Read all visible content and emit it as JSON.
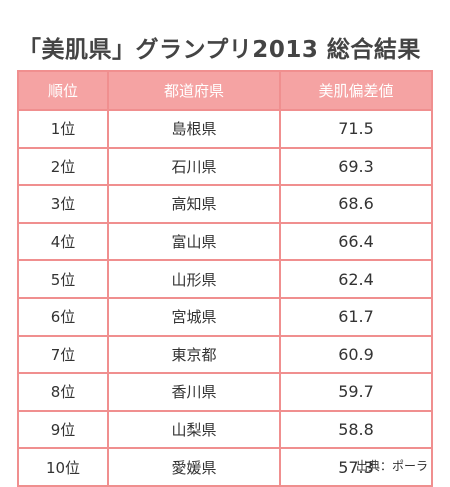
{
  "title": "「美肌県」グランプリ2013 総合結果",
  "table": {
    "headers": [
      "順位",
      "都道府県",
      "美肌偏差値"
    ],
    "rows": [
      {
        "rank": "1位",
        "prefecture": "島根県",
        "score": "71.5"
      },
      {
        "rank": "2位",
        "prefecture": "石川県",
        "score": "69.3"
      },
      {
        "rank": "3位",
        "prefecture": "高知県",
        "score": "68.6"
      },
      {
        "rank": "4位",
        "prefecture": "富山県",
        "score": "66.4"
      },
      {
        "rank": "5位",
        "prefecture": "山形県",
        "score": "62.4"
      },
      {
        "rank": "6位",
        "prefecture": "宮城県",
        "score": "61.7"
      },
      {
        "rank": "7位",
        "prefecture": "東京都",
        "score": "60.9"
      },
      {
        "rank": "8位",
        "prefecture": "香川県",
        "score": "59.7"
      },
      {
        "rank": "9位",
        "prefecture": "山梨県",
        "score": "58.8"
      },
      {
        "rank": "10位",
        "prefecture": "愛媛県",
        "score": "57.3"
      }
    ]
  },
  "source": "出典：ポーラ",
  "colors": {
    "header_bg": "#f5a3a3",
    "border": "#f08f8f",
    "header_text": "#ffffff",
    "title_text": "#444444"
  }
}
